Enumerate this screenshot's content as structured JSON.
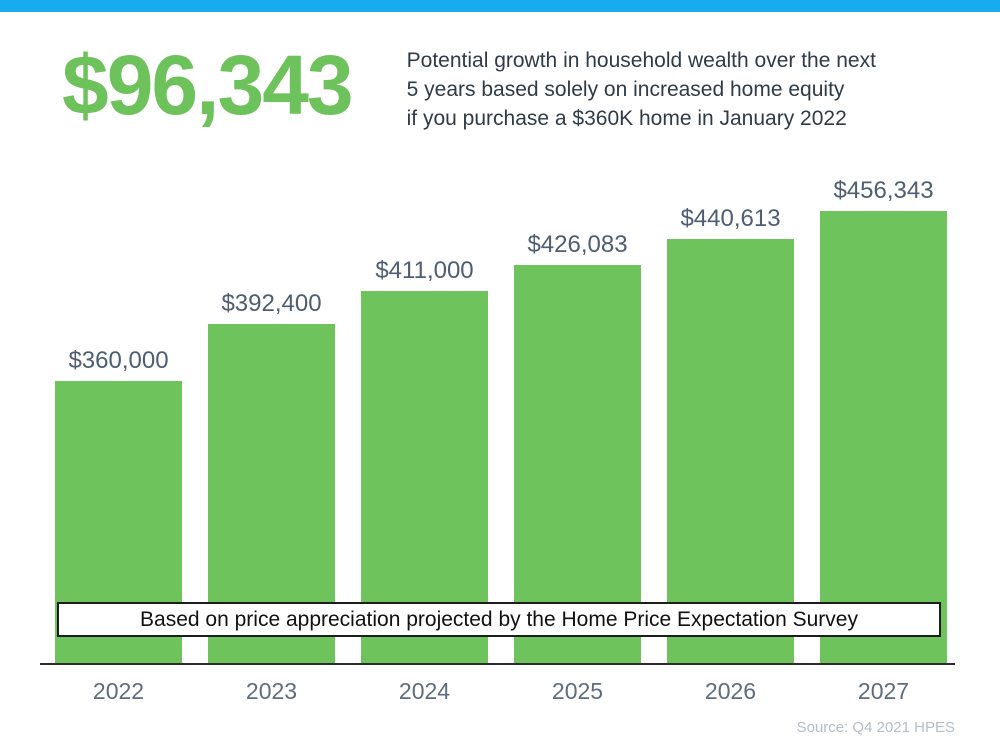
{
  "top_bar": {
    "color": "#18abee"
  },
  "header": {
    "headline": "$96,343",
    "headline_color": "#6dc25c",
    "description_lines": [
      "Potential growth in household wealth over the next",
      "5 years based solely on increased home equity",
      "if you purchase a $360K home in January 2022"
    ]
  },
  "chart_data": {
    "type": "bar",
    "title": "",
    "xlabel": "",
    "ylabel": "",
    "categories": [
      "2022",
      "2023",
      "2024",
      "2025",
      "2026",
      "2027"
    ],
    "values": [
      360000,
      392400,
      411000,
      426083,
      440613,
      456343
    ],
    "value_labels": [
      "$360,000",
      "$392,400",
      "$411,000",
      "$426,083",
      "$440,613",
      "$456,343"
    ],
    "bar_color": "#6ec35d",
    "label_color": "#4e5e72",
    "ylim": [
      200000,
      485000
    ],
    "grid": false,
    "legend_position": "none",
    "annotation": "Based on price appreciation projected by the Home Price Expectation Survey"
  },
  "annotation_box": {
    "text": "Based on price appreciation projected by the Home Price Expectation Survey"
  },
  "footer": {
    "source": "Source: Q4 2021 HPES"
  }
}
